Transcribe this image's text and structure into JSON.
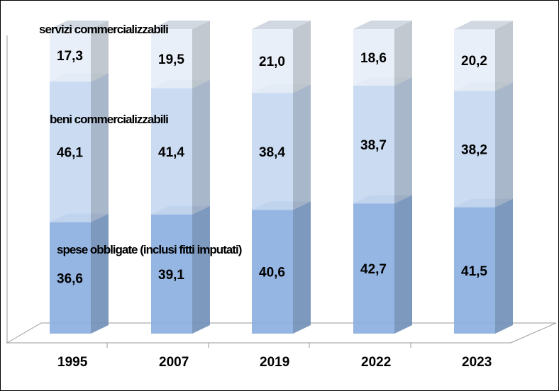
{
  "chart_data": {
    "type": "bar",
    "stacked": true,
    "style": "3d-percent",
    "categories": [
      "1995",
      "2007",
      "2019",
      "2022",
      "2023"
    ],
    "ylim": [
      0,
      100
    ],
    "series": [
      {
        "name": "spese obbligate (inclusi fitti imputati)",
        "values": [
          "36,6",
          "39,1",
          "40,6",
          "42,7",
          "41,5"
        ],
        "color": "#8cb0e0"
      },
      {
        "name": "beni commercializzabili",
        "values": [
          "46,1",
          "41,4",
          "38,4",
          "38,7",
          "38,2"
        ],
        "color": "#c6d8f1"
      },
      {
        "name": "servizi commercializzabili",
        "values": [
          "17,3",
          "19,5",
          "21,0",
          "18,6",
          "20,2"
        ],
        "color": "#e7eef8"
      }
    ]
  }
}
